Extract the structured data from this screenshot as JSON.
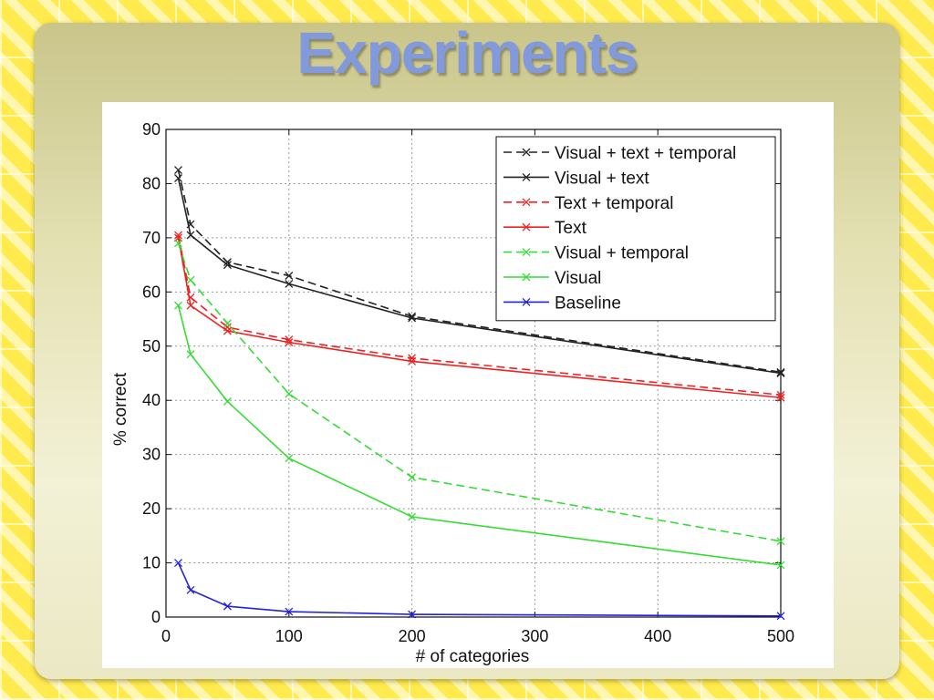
{
  "slide": {
    "title": "Experiments"
  },
  "colors": {
    "black_series": "#222222",
    "red_series": "#ee2222",
    "green_series": "#33dd33",
    "blue_series": "#2222dd"
  },
  "chart_data": {
    "type": "line",
    "title": "",
    "xlabel": "# of categories",
    "ylabel": "% correct",
    "xlim": [
      0,
      500
    ],
    "ylim": [
      0,
      90
    ],
    "xticks": [
      0,
      100,
      200,
      300,
      400,
      500
    ],
    "yticks": [
      0,
      10,
      20,
      30,
      40,
      50,
      60,
      70,
      80,
      90
    ],
    "grid": true,
    "legend_position": "top-right",
    "x": [
      10,
      20,
      50,
      100,
      200,
      500
    ],
    "series": [
      {
        "name": "Visual + text + temporal",
        "color": "#222222",
        "dash": true,
        "values": [
          82.5,
          72.5,
          65.5,
          63,
          55.5,
          45.2
        ]
      },
      {
        "name": "Visual + text",
        "color": "#222222",
        "dash": false,
        "values": [
          81,
          70.5,
          65,
          61.5,
          55.2,
          45
        ]
      },
      {
        "name": "Text + temporal",
        "color": "#ee2222",
        "dash": true,
        "values": [
          70.5,
          59,
          53.5,
          51.2,
          47.8,
          41
        ]
      },
      {
        "name": "Text",
        "color": "#ee2222",
        "dash": false,
        "values": [
          70,
          57.5,
          52.8,
          50.7,
          47.2,
          40.5
        ]
      },
      {
        "name": "Visual + temporal",
        "color": "#33dd33",
        "dash": true,
        "values": [
          69,
          62.2,
          54.2,
          41.2,
          25.8,
          14
        ]
      },
      {
        "name": "Visual",
        "color": "#33dd33",
        "dash": false,
        "values": [
          57.5,
          48.5,
          39.8,
          29.3,
          18.5,
          9.6
        ]
      },
      {
        "name": "Baseline",
        "color": "#2222dd",
        "dash": false,
        "values": [
          10,
          5,
          2,
          1,
          0.5,
          0.2
        ]
      }
    ]
  }
}
